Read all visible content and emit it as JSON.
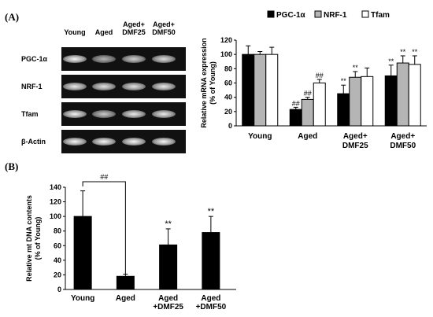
{
  "panelA": {
    "label": "(A)",
    "gel": {
      "lanes": [
        "Young",
        "Aged",
        "Aged+\nDMF25",
        "Aged+\nDMF50"
      ],
      "rows": [
        {
          "label": "PGC-1α",
          "intensity": [
            0.95,
            0.45,
            0.65,
            0.75
          ]
        },
        {
          "label": "NRF-1",
          "intensity": [
            0.85,
            0.8,
            0.8,
            0.85
          ]
        },
        {
          "label": "Tfam",
          "intensity": [
            0.9,
            0.6,
            0.85,
            0.85
          ]
        },
        {
          "label": "β-Actin",
          "intensity": [
            0.95,
            0.95,
            0.95,
            0.95
          ]
        }
      ]
    }
  },
  "panelB": {
    "label": "(B)"
  },
  "chart_data": [
    {
      "type": "bar",
      "title": "",
      "ylabel": "Relative mRNA expression\n(% of Young)",
      "xlabel": "",
      "categories": [
        "Young",
        "Aged",
        "Aged+\nDMF25",
        "Aged+\nDMF50"
      ],
      "ylim": [
        0,
        120
      ],
      "yticks": [
        0,
        20,
        40,
        60,
        80,
        100,
        120
      ],
      "legend_position": "top",
      "series": [
        {
          "name": "PGC-1α",
          "color": "#000000",
          "values": [
            100,
            23,
            45,
            70
          ],
          "errors": [
            12,
            3,
            12,
            15
          ],
          "annotations": [
            "",
            "##",
            "**",
            "**"
          ]
        },
        {
          "name": "NRF-1",
          "color": "#b5b5b5",
          "values": [
            100,
            37,
            68,
            88
          ],
          "errors": [
            4,
            3,
            8,
            10
          ],
          "annotations": [
            "",
            "##",
            "**",
            "**"
          ]
        },
        {
          "name": "Tfam",
          "color": "#ffffff",
          "values": [
            100,
            60,
            69,
            86
          ],
          "errors": [
            10,
            5,
            12,
            12
          ],
          "annotations": [
            "",
            "##",
            "",
            "**"
          ]
        }
      ]
    },
    {
      "type": "bar",
      "title": "",
      "ylabel": "Relative mt DNA contents\n(% of Young)",
      "xlabel": "",
      "categories": [
        "Young",
        "Aged",
        "Aged\n+DMF25",
        "Aged\n+DMF50"
      ],
      "ylim": [
        0,
        140
      ],
      "yticks": [
        0,
        20,
        40,
        60,
        80,
        100,
        120,
        140
      ],
      "series": [
        {
          "name": "",
          "color": "#000000",
          "values": [
            100,
            18,
            61,
            78
          ],
          "errors": [
            35,
            3,
            22,
            22
          ],
          "annotations": [
            "",
            "",
            "**",
            "**"
          ]
        }
      ],
      "bracket": {
        "from": 0,
        "to": 1,
        "label": "##"
      }
    }
  ]
}
